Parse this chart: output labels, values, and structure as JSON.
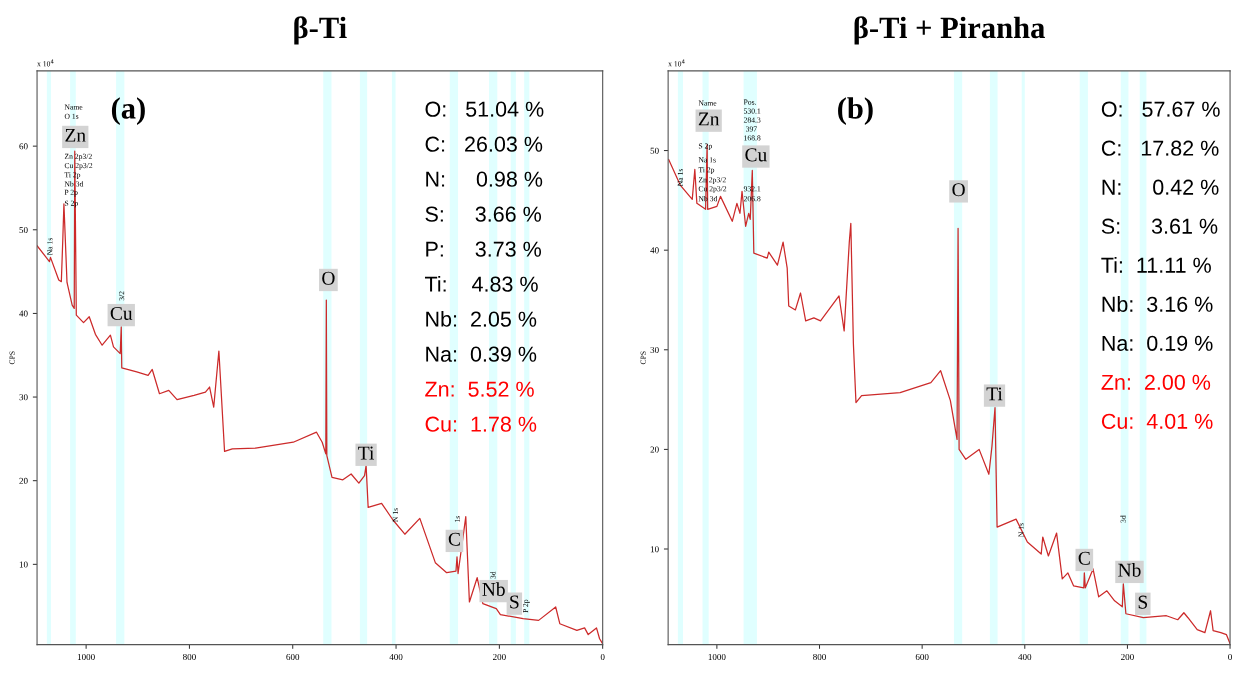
{
  "chart_data": [
    {
      "type": "line",
      "title": "β-Ti",
      "ylabel": "CPS",
      "grid": false,
      "legend": false,
      "marker": "none",
      "line_style": "solid",
      "xlim": [
        1095,
        0
      ],
      "xticks": [
        1000,
        800,
        600,
        400,
        200,
        0
      ],
      "ylim": [
        0.4,
        69
      ],
      "yticks": [
        10,
        20,
        30,
        40,
        50,
        60
      ],
      "series": [
        {
          "color": "#cc2a2a",
          "x": [
            1095,
            1071,
            1069,
            1053,
            1048,
            1045,
            1043,
            1037,
            1027,
            1023,
            1022,
            1019,
            1005,
            994,
            982,
            969,
            953,
            947,
            934,
            932,
            931,
            902,
            880,
            872,
            858,
            840,
            824,
            791,
            769,
            761,
            753,
            743,
            732,
            717,
            672,
            599,
            554,
            543,
            536,
            535,
            534,
            524,
            503,
            487,
            472,
            461,
            458,
            454,
            428,
            406,
            383,
            354,
            324,
            302,
            284,
            282,
            280,
            265,
            258,
            243,
            232,
            206,
            198,
            154,
            124,
            91,
            83,
            50,
            35,
            28,
            12,
            6,
            0
          ],
          "values": [
            48.1,
            46.2,
            46.7,
            44.0,
            43.8,
            49.1,
            53.1,
            43.7,
            41.0,
            40.6,
            59.4,
            39.8,
            38.9,
            39.6,
            37.5,
            36.2,
            37.4,
            36.0,
            35.2,
            38.4,
            33.5,
            33.0,
            32.6,
            33.3,
            30.4,
            30.8,
            29.7,
            30.2,
            30.6,
            31.2,
            28.8,
            35.5,
            23.5,
            23.8,
            23.9,
            24.6,
            25.8,
            24.6,
            23.2,
            41.6,
            23.0,
            20.4,
            20.1,
            20.8,
            19.7,
            20.6,
            21.8,
            16.8,
            17.3,
            15.3,
            13.6,
            15.5,
            10.2,
            9.0,
            9.2,
            10.9,
            8.9,
            15.7,
            5.5,
            8.4,
            5.3,
            4.7,
            4.0,
            3.5,
            3.3,
            4.9,
            2.9,
            2.1,
            2.4,
            1.6,
            2.4,
            1.1,
            0.5
          ]
        }
      ],
      "bands": [
        {
          "axis": "x",
          "from": 1076,
          "to": 1068,
          "color": "#e0ffff"
        },
        {
          "axis": "x",
          "from": 1031,
          "to": 1020,
          "color": "#e0ffff"
        },
        {
          "axis": "x",
          "from": 942,
          "to": 926,
          "color": "#e0ffff"
        },
        {
          "axis": "x",
          "from": 541,
          "to": 525,
          "color": "#e0ffff"
        },
        {
          "axis": "x",
          "from": 470,
          "to": 456,
          "color": "#e0ffff"
        },
        {
          "axis": "x",
          "from": 408,
          "to": 401,
          "color": "#e0ffff"
        },
        {
          "axis": "x",
          "from": 296,
          "to": 280,
          "color": "#e0ffff"
        },
        {
          "axis": "x",
          "from": 220,
          "to": 204,
          "color": "#e0ffff"
        },
        {
          "axis": "x",
          "from": 178,
          "to": 168,
          "color": "#e0ffff"
        },
        {
          "axis": "x",
          "from": 152,
          "to": 142,
          "color": "#e0ffff"
        }
      ],
      "annotations": [
        {
          "text": "Zn",
          "x": 1021,
          "y": 61.1
        },
        {
          "text": "Cu",
          "x": 932,
          "y": 39.8
        },
        {
          "text": "O",
          "x": 531,
          "y": 44.0
        },
        {
          "text": "Ti",
          "x": 458,
          "y": 23.1
        },
        {
          "text": "C",
          "x": 287,
          "y": 12.8
        },
        {
          "text": "Nb",
          "x": 211,
          "y": 6.8
        },
        {
          "text": "S",
          "x": 171,
          "y": 5.3
        },
        "x 10$^{4}$",
        "(a)",
        "Name",
        "O 1s",
        "Zn 2p3/2",
        "Cu 2p3/2",
        "Ti 2p",
        "Nb 3d",
        "P 2p",
        "S 2p",
        "Na 1s",
        "3/2",
        "N 1s",
        "1s",
        "3d",
        "P 2p",
        "O:   51.04 %",
        "C:   26.03 %",
        "N:     0.98 %",
        "S:     3.66 %",
        "P:     3.73 %",
        "Ti:    4.83 %",
        "Nb:  2.05 %",
        "Na:  0.39 %",
        "Zn:  5.52 %",
        "Cu:  1.78 %"
      ]
    },
    {
      "type": "line",
      "title": "β-Ti + Piranha",
      "ylabel": "CPS",
      "grid": false,
      "legend": false,
      "marker": "none",
      "line_style": "solid",
      "xlim": [
        1095,
        0
      ],
      "xticks": [
        1000,
        800,
        600,
        400,
        200,
        0
      ],
      "ylim": [
        0.4,
        58
      ],
      "yticks": [
        10,
        20,
        30,
        40,
        50
      ],
      "series": [
        {
          "color": "#cc2a2a",
          "x": [
            1094,
            1071,
            1048,
            1043,
            1039,
            1022,
            1019,
            1018,
            1000,
            993,
            970,
            961,
            955,
            951,
            944,
            938,
            935,
            931,
            928,
            902,
            899,
            882,
            871,
            863,
            860,
            847,
            837,
            827,
            811,
            798,
            762,
            752,
            742,
            739,
            734,
            729,
            718,
            643,
            583,
            564,
            545,
            532,
            530,
            528,
            515,
            489,
            470,
            464,
            458,
            454,
            417,
            395,
            368,
            365,
            354,
            338,
            327,
            316,
            305,
            285,
            284,
            282,
            267,
            256,
            240,
            225,
            210,
            208,
            203,
            169,
            124,
            102,
            90,
            82,
            64,
            49,
            38,
            33,
            18,
            7,
            0
          ],
          "values": [
            49.1,
            46.5,
            45.1,
            48.1,
            44.7,
            44.1,
            50.6,
            44.1,
            44.4,
            45.4,
            42.9,
            44.7,
            43.7,
            45.9,
            42.4,
            43.7,
            43.1,
            48.0,
            39.7,
            39.2,
            39.8,
            38.5,
            40.8,
            38.2,
            34.4,
            34.0,
            35.7,
            32.9,
            33.2,
            32.9,
            35.4,
            31.9,
            40.8,
            42.7,
            30.6,
            24.7,
            25.4,
            25.7,
            26.7,
            27.9,
            24.9,
            21.0,
            42.2,
            20.0,
            19.0,
            20.0,
            17.5,
            20.3,
            24.2,
            12.2,
            13.0,
            10.7,
            9.5,
            11.2,
            9.3,
            11.6,
            7.0,
            7.6,
            6.3,
            6.1,
            7.6,
            6.1,
            8.0,
            5.2,
            5.8,
            4.8,
            4.2,
            6.5,
            3.5,
            3.1,
            3.3,
            2.9,
            3.6,
            3.1,
            1.9,
            1.6,
            3.8,
            1.8,
            1.6,
            1.4,
            0.5
          ]
        }
      ],
      "bands": [
        {
          "axis": "x",
          "from": 1076,
          "to": 1066,
          "color": "#e0ffff"
        },
        {
          "axis": "x",
          "from": 1028,
          "to": 1016,
          "color": "#e0ffff"
        },
        {
          "axis": "x",
          "from": 948,
          "to": 922,
          "color": "#e0ffff"
        },
        {
          "axis": "x",
          "from": 538,
          "to": 522,
          "color": "#e0ffff"
        },
        {
          "axis": "x",
          "from": 468,
          "to": 453,
          "color": "#e0ffff"
        },
        {
          "axis": "x",
          "from": 406,
          "to": 400,
          "color": "#e0ffff"
        },
        {
          "axis": "x",
          "from": 293,
          "to": 277,
          "color": "#e0ffff"
        },
        {
          "axis": "x",
          "from": 213,
          "to": 198,
          "color": "#e0ffff"
        },
        {
          "axis": "x",
          "from": 176,
          "to": 163,
          "color": "#e0ffff"
        }
      ],
      "annotations": [
        {
          "text": "Zn",
          "x": 1016,
          "y": 53.0
        },
        {
          "text": "Cu",
          "x": 924,
          "y": 49.4
        },
        {
          "text": "O",
          "x": 529,
          "y": 45.9
        },
        {
          "text": "Ti",
          "x": 459,
          "y": 25.4
        },
        {
          "text": "C",
          "x": 284,
          "y": 8.9
        },
        {
          "text": "Nb",
          "x": 196,
          "y": 7.7
        },
        {
          "text": "S",
          "x": 170,
          "y": 4.5
        },
        "x 10$^{4}$",
        "(b)",
        "Name",
        "S 2p",
        "Na 1s",
        "Ti 2p",
        "Zn 2p3/2",
        "Cu 2p3/2",
        "Nb 3d",
        "Pos.",
        "530.1",
        "284.3",
        "397",
        "168.8",
        "932.1",
        "206.8",
        "Na 1s",
        "N 1s",
        "3d",
        "O:   57.67 %",
        "C:   17.82 %",
        "N:     0.42 %",
        "S:     3.61 %",
        "Ti:  11.11 %",
        "Nb:  3.16 %",
        "Na:  0.19 %",
        "Zn:  2.00 %",
        "Cu:  4.01 %"
      ]
    }
  ]
}
